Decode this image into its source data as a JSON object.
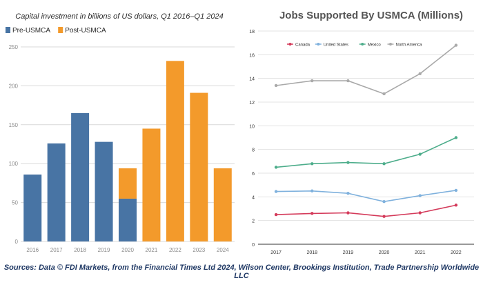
{
  "chart_data": [
    {
      "type": "bar",
      "title": "Capital investment in billions of US dollars, Q1 2016–Q1 2024",
      "categories": [
        "2016",
        "2017",
        "2018",
        "2019",
        "2020",
        "2021",
        "2022",
        "2023",
        "2024"
      ],
      "series": [
        {
          "name": "Pre-USMCA",
          "color": "#4874a4",
          "values": [
            86,
            126,
            165,
            128,
            55,
            0,
            0,
            0,
            0
          ]
        },
        {
          "name": "Post-USMCA",
          "color": "#f39a2b",
          "values": [
            0,
            0,
            0,
            0,
            39,
            145,
            232,
            191,
            94
          ]
        }
      ],
      "stacked": true,
      "ylim": [
        0,
        250
      ],
      "yticks": [
        0,
        50,
        100,
        150,
        200,
        250
      ],
      "xlabel": "",
      "ylabel": "",
      "legend": "top-left"
    },
    {
      "type": "line",
      "title": "Jobs Supported By USMCA (Millions)",
      "x": [
        "2017",
        "2018",
        "2019",
        "2020",
        "2021",
        "2022"
      ],
      "series": [
        {
          "name": "Canada",
          "color": "#d43a5a",
          "values": [
            2.5,
            2.6,
            2.65,
            2.35,
            2.65,
            3.3
          ]
        },
        {
          "name": "United States",
          "color": "#7fb1dd",
          "values": [
            4.45,
            4.5,
            4.3,
            3.6,
            4.1,
            4.55
          ]
        },
        {
          "name": "Mexico",
          "color": "#4dad8b",
          "values": [
            6.5,
            6.8,
            6.9,
            6.8,
            7.6,
            9.0
          ]
        },
        {
          "name": "North America",
          "color": "#a9a9a9",
          "values": [
            13.4,
            13.8,
            13.8,
            12.7,
            14.4,
            16.8
          ]
        }
      ],
      "ylim": [
        0,
        18
      ],
      "yticks": [
        0,
        2,
        4,
        6,
        8,
        10,
        12,
        14,
        16,
        18
      ],
      "xlabel": "",
      "ylabel": "",
      "legend": "top-left"
    }
  ],
  "source_note": "Sources: Data © FDI Markets, from the Financial Times Ltd 2024,  Wilson Center, Brookings Institution, Trade Partnership Worldwide LLC"
}
